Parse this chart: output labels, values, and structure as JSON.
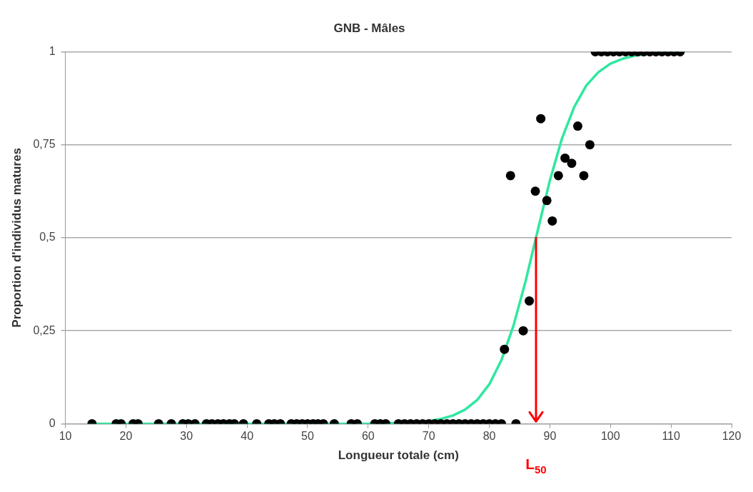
{
  "chart_data": {
    "type": "scatter",
    "title": "GNB - Mâles",
    "xlabel": "Longueur totale (cm)",
    "ylabel": "Proportion d'individus matures",
    "xlim": [
      10,
      120
    ],
    "xticks": [
      10,
      20,
      30,
      40,
      50,
      60,
      70,
      80,
      90,
      100,
      110,
      120
    ],
    "ylim": [
      0,
      1
    ],
    "yticks": [
      {
        "value": 0,
        "label": "0"
      },
      {
        "value": 0.25,
        "label": "0,25"
      },
      {
        "value": 0.5,
        "label": "0,5"
      },
      {
        "value": 0.75,
        "label": "0,75"
      },
      {
        "value": 1,
        "label": "1"
      }
    ],
    "grid": "y",
    "legend": false,
    "marker": "circle",
    "ref_lines": [
      {
        "axis": "x",
        "value": 87.7,
        "label": "L$_{50}$",
        "color": "#ff0000"
      }
    ],
    "series": [
      {
        "color": "#000000",
        "x": [
          14.4,
          18.4,
          19.2,
          21.2,
          22,
          25.4,
          27.5,
          29.4,
          30.3,
          31.4,
          33.3,
          34.2,
          35.2,
          36.1,
          37.1,
          37.9,
          39.4,
          41.6,
          43.6,
          44.5,
          45.5,
          47.3,
          48.2,
          49.1,
          50,
          50.9,
          51.7,
          52.6,
          54.4,
          57.2,
          58.2,
          61.1,
          62,
          62.9,
          65,
          66,
          67,
          68,
          69,
          70,
          71,
          72,
          73,
          74,
          75,
          76,
          77,
          78,
          79,
          80,
          81,
          82,
          84.4,
          82.5,
          83.5,
          85.6,
          86.6,
          87.6,
          88.5,
          89.5,
          90.4,
          91.4,
          92.5,
          93.6,
          94.6,
          95.6,
          96.6,
          97.5,
          98.5,
          99.5,
          100.5,
          101.5,
          102.5,
          103.5,
          104.5,
          105.5,
          106.5,
          107.5,
          108.5,
          109.5,
          110.5,
          111.5
        ],
        "values": [
          0,
          0,
          0,
          0,
          0,
          0,
          0,
          0,
          0,
          0,
          0,
          0,
          0,
          0,
          0,
          0,
          0,
          0,
          0,
          0,
          0,
          0,
          0,
          0,
          0,
          0,
          0,
          0,
          0,
          0,
          0,
          0,
          0,
          0,
          0,
          0,
          0,
          0,
          0,
          0,
          0,
          0,
          0,
          0,
          0,
          0,
          0,
          0,
          0,
          0,
          0,
          0,
          0,
          0.2,
          0.667,
          0.25,
          0.33,
          0.625,
          0.82,
          0.6,
          0.545,
          0.667,
          0.714,
          0.7,
          0.8,
          0.667,
          0.75,
          1,
          1,
          1,
          1,
          1,
          1,
          1,
          1,
          1,
          1,
          1,
          1,
          1,
          1,
          1
        ]
      },
      {
        "type": "line",
        "color": "#2ee8a0",
        "marker": "none",
        "x": [
          14,
          60,
          65,
          70,
          72,
          74,
          76,
          78,
          80,
          82,
          84,
          86,
          88,
          90,
          92,
          94,
          96,
          98,
          100,
          102,
          104,
          106,
          108,
          112
        ],
        "values": [
          0,
          0,
          0.002,
          0.007,
          0.013,
          0.022,
          0.038,
          0.064,
          0.106,
          0.171,
          0.264,
          0.384,
          0.52,
          0.654,
          0.767,
          0.851,
          0.909,
          0.945,
          0.968,
          0.981,
          0.989,
          0.994,
          0.996,
          0.999
        ]
      }
    ]
  }
}
